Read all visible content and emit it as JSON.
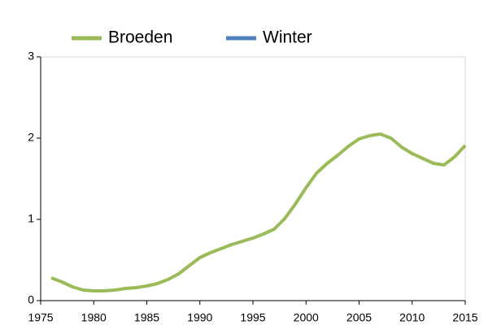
{
  "chart_data": {
    "type": "line",
    "x": [
      1976,
      1977,
      1978,
      1979,
      1980,
      1981,
      1982,
      1983,
      1984,
      1985,
      1986,
      1987,
      1988,
      1989,
      1990,
      1991,
      1992,
      1993,
      1994,
      1995,
      1996,
      1997,
      1998,
      1999,
      2000,
      2001,
      2002,
      2003,
      2004,
      2005,
      2006,
      2007,
      2008,
      2009,
      2010,
      2011,
      2012,
      2013,
      2014,
      2015
    ],
    "series": [
      {
        "name": "Broeden",
        "color": "#9bbb59",
        "values": [
          0.28,
          0.23,
          0.17,
          0.13,
          0.12,
          0.12,
          0.13,
          0.15,
          0.16,
          0.18,
          0.21,
          0.26,
          0.33,
          0.43,
          0.53,
          0.59,
          0.64,
          0.69,
          0.73,
          0.77,
          0.82,
          0.88,
          1.01,
          1.19,
          1.39,
          1.57,
          1.69,
          1.79,
          1.9,
          1.99,
          2.03,
          2.05,
          2.0,
          1.89,
          1.81,
          1.75,
          1.69,
          1.67,
          1.77,
          1.91
        ]
      },
      {
        "name": "Winter",
        "color": "#4f81bd",
        "values": [
          null,
          null,
          null,
          null,
          null,
          null,
          null,
          null,
          null,
          null,
          null,
          null,
          null,
          null,
          null,
          null,
          null,
          null,
          null,
          null,
          null,
          null,
          null,
          null,
          null,
          null,
          null,
          null,
          null,
          null,
          null,
          null,
          null,
          null,
          null,
          null,
          null,
          null,
          null,
          null
        ]
      }
    ],
    "xlim": [
      1975,
      2015
    ],
    "xticks": [
      1975,
      1980,
      1985,
      1990,
      1995,
      2000,
      2005,
      2010,
      2015
    ],
    "ylim": [
      0,
      3
    ],
    "yticks": [
      0,
      1,
      2,
      3
    ]
  }
}
